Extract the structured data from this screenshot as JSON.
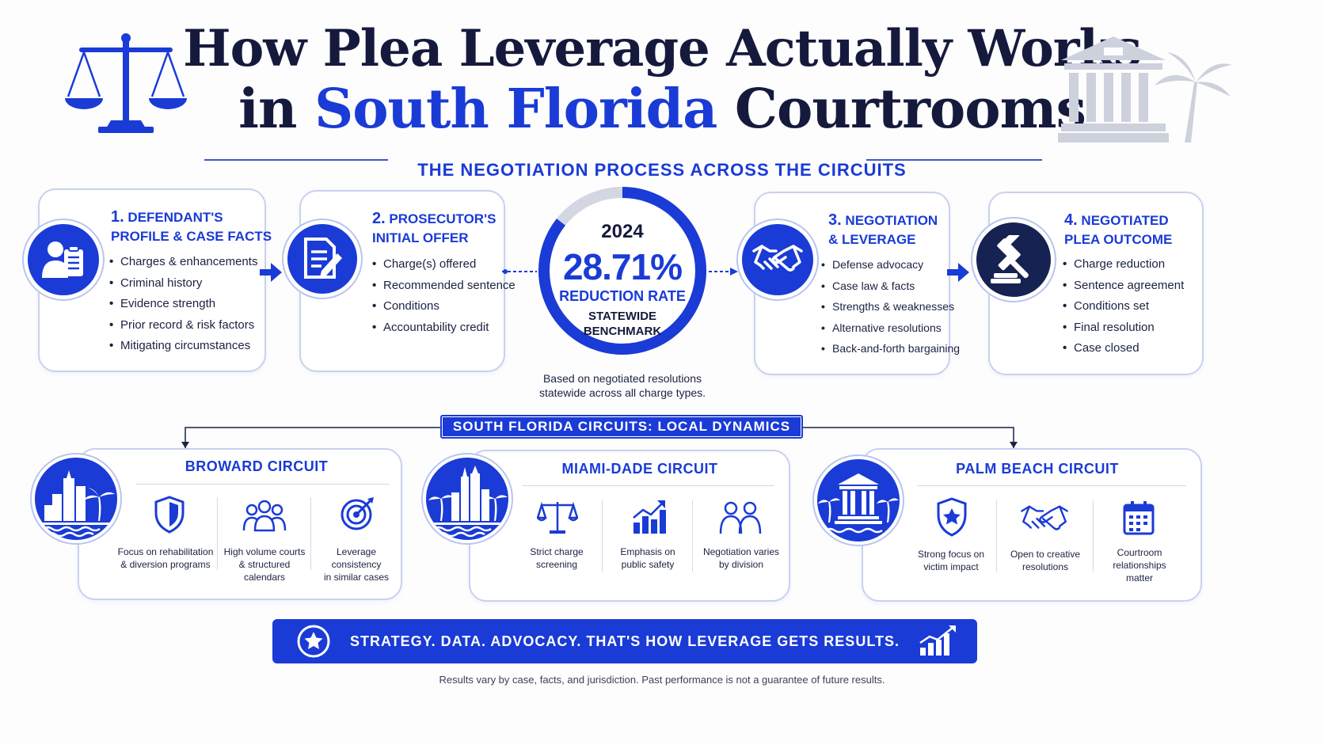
{
  "title": {
    "line1": "How Plea Leverage Actually Works",
    "line2_pre": "in ",
    "line2_highlight": "South Florida",
    "line2_post": " Courtrooms"
  },
  "subtitle": "THE NEGOTIATION PROCESS ACROSS THE CIRCUITS",
  "steps": [
    {
      "num": "1.",
      "title_a": "DEFENDANT'S",
      "title_b": "PROFILE & CASE FACTS",
      "icon": "defendant-clipboard-icon",
      "items": [
        "Charges & enhancements",
        "Criminal history",
        "Evidence strength",
        "Prior record & risk factors",
        "Mitigating circumstances"
      ]
    },
    {
      "num": "2.",
      "title_a": "PROSECUTOR'S",
      "title_b": "INITIAL OFFER",
      "icon": "document-pen-icon",
      "items": [
        "Charge(s) offered",
        "Recommended sentence",
        "Conditions",
        "Accountability credit"
      ]
    },
    {
      "num": "3.",
      "title_a": "NEGOTIATION",
      "title_b": "& LEVERAGE",
      "icon": "handshake-icon",
      "items": [
        "Defense advocacy",
        "Case law & facts",
        "Strengths & weaknesses",
        "Alternative resolutions",
        "Back-and-forth bargaining"
      ]
    },
    {
      "num": "4.",
      "title_a": "NEGOTIATED",
      "title_b": "PLEA OUTCOME",
      "icon": "gavel-icon",
      "items": [
        "Charge reduction",
        "Sentence agreement",
        "Conditions set",
        "Final resolution",
        "Case closed"
      ]
    }
  ],
  "benchmark": {
    "year": "2024",
    "value": "28.71%",
    "fraction": 0.2871,
    "label": "REDUCTION RATE",
    "sub_a": "STATEWIDE",
    "sub_b": "BENCHMARK",
    "note_a": "Based on negotiated resolutions",
    "note_b": "statewide across all charge types."
  },
  "section_label": "SOUTH FLORIDA CIRCUITS: LOCAL DYNAMICS",
  "circuits": [
    {
      "name": "BROWARD CIRCUIT",
      "emblem": "city-skyline-icon",
      "features": [
        {
          "icon": "shield-icon",
          "a": "Focus on rehabilitation",
          "b": "& diversion programs",
          "c": ""
        },
        {
          "icon": "people-group-icon",
          "a": "High volume courts",
          "b": "& structured calendars",
          "c": ""
        },
        {
          "icon": "target-icon",
          "a": "Leverage consistency",
          "b": "in similar cases",
          "c": ""
        }
      ]
    },
    {
      "name": "MIAMI-DADE CIRCUIT",
      "emblem": "miami-skyline-icon",
      "features": [
        {
          "icon": "scales-icon",
          "a": "Strict charge",
          "b": "screening",
          "c": ""
        },
        {
          "icon": "bar-chart-icon",
          "a": "Emphasis on",
          "b": "public safety",
          "c": ""
        },
        {
          "icon": "two-people-icon",
          "a": "Negotiation varies",
          "b": "by division",
          "c": ""
        }
      ]
    },
    {
      "name": "PALM BEACH CIRCUIT",
      "emblem": "courthouse-icon",
      "features": [
        {
          "icon": "star-shield-icon",
          "a": "Strong focus on",
          "b": "victim impact",
          "c": ""
        },
        {
          "icon": "handshake-icon",
          "a": "Open to creative",
          "b": "resolutions",
          "c": ""
        },
        {
          "icon": "calendar-icon",
          "a": "Courtroom",
          "b": "relationships",
          "c": "matter"
        }
      ]
    }
  ],
  "banner": "STRATEGY. DATA. ADVOCACY. THAT'S HOW LEVERAGE GETS RESULTS.",
  "disclaimer": "Results vary by case, facts, and jurisdiction. Past performance is not a guarantee of future results.",
  "colors": {
    "brand_blue": "#1a3bd6",
    "navy": "#151a3d",
    "border": "#c9d1ef"
  }
}
